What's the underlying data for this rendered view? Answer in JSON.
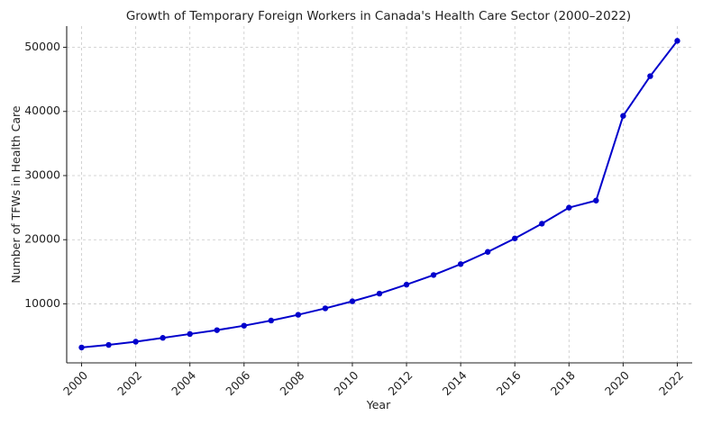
{
  "colors": {
    "line": "#0000cc",
    "marker": "#0000cc"
  },
  "chart_data": {
    "type": "line",
    "title": "Growth of Temporary Foreign Workers in Canada's Health Care Sector (2000–2022)",
    "xlabel": "Year",
    "ylabel": "Number of TFWs in Health Care",
    "xlim": [
      1999.45,
      2022.55
    ],
    "ylim": [
      800,
      53300
    ],
    "grid": true,
    "x_ticks": [
      2000,
      2002,
      2004,
      2006,
      2008,
      2010,
      2012,
      2014,
      2016,
      2018,
      2020,
      2022
    ],
    "x_tick_labels": [
      "2000",
      "2002",
      "2004",
      "2006",
      "2008",
      "2010",
      "2012",
      "2014",
      "2016",
      "2018",
      "2020",
      "2022"
    ],
    "y_ticks": [
      10000,
      20000,
      30000,
      40000,
      50000
    ],
    "y_tick_labels": [
      "10000",
      "20000",
      "30000",
      "40000",
      "50000"
    ],
    "series": [
      {
        "name": "TFWs in Health Care",
        "x": [
          2000,
          2001,
          2002,
          2003,
          2004,
          2005,
          2006,
          2007,
          2008,
          2009,
          2010,
          2011,
          2012,
          2013,
          2014,
          2015,
          2016,
          2017,
          2018,
          2019,
          2020,
          2021,
          2022
        ],
        "values": [
          3200,
          3600,
          4100,
          4700,
          5300,
          5900,
          6600,
          7400,
          8300,
          9300,
          10400,
          11600,
          13000,
          14500,
          16200,
          18100,
          20200,
          22500,
          25000,
          26100,
          39300,
          45500,
          51000
        ]
      }
    ]
  }
}
